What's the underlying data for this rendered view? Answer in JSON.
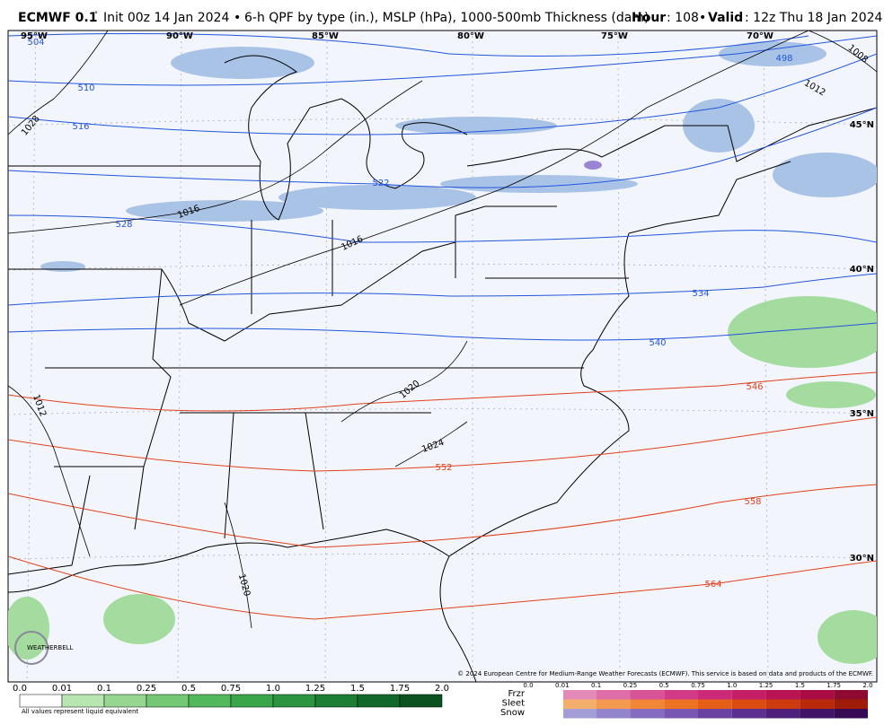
{
  "header": {
    "title": "ECMWF 0.1",
    "degree": "°",
    "init": "Init 00z 14 Jan 2024",
    "separator": "•",
    "product": "6-h QPF by type (in.), MSLP (hPa), 1000-500mb Thickness (dam)",
    "hour_label": "Hour",
    "hour_value": ": 108",
    "valid_label": "Valid",
    "valid_value": ": 12z Thu 18 Jan 2024"
  },
  "map": {
    "lon_labels": [
      "95°W",
      "90°W",
      "85°W",
      "80°W",
      "75°W",
      "70°W"
    ],
    "lat_labels": [
      "45°N",
      "40°N",
      "35°N",
      "30°N"
    ],
    "isobar_labels": [
      "1028",
      "1016",
      "1016",
      "1020",
      "1024",
      "1012",
      "1020",
      "1008",
      "1012"
    ],
    "thickness_labels": [
      "504",
      "510",
      "516",
      "522",
      "528",
      "534",
      "540",
      "498",
      "546",
      "552",
      "558",
      "564"
    ],
    "logo": "WEATHERBELL",
    "copyright": "© 2024 European Centre for Medium-Range Weather Forecasts (ECMWF). This service is based on data and products of the ECMWF."
  },
  "legend": {
    "qpf_labels": [
      "0.0",
      "0.01",
      "0.1",
      "0.25",
      "0.5",
      "0.75",
      "1.0",
      "1.25",
      "1.5",
      "1.75",
      "2.0"
    ],
    "note": "All values represent liquid equivalent",
    "ptype_scale": [
      "0.0",
      "0.01",
      "0.1",
      "0.25",
      "0.5",
      "0.75",
      "1.0",
      "1.25",
      "1.5",
      "1.75",
      "2.0"
    ],
    "ptype_labels": [
      "Frzr",
      "Sleet",
      "Snow"
    ]
  }
}
